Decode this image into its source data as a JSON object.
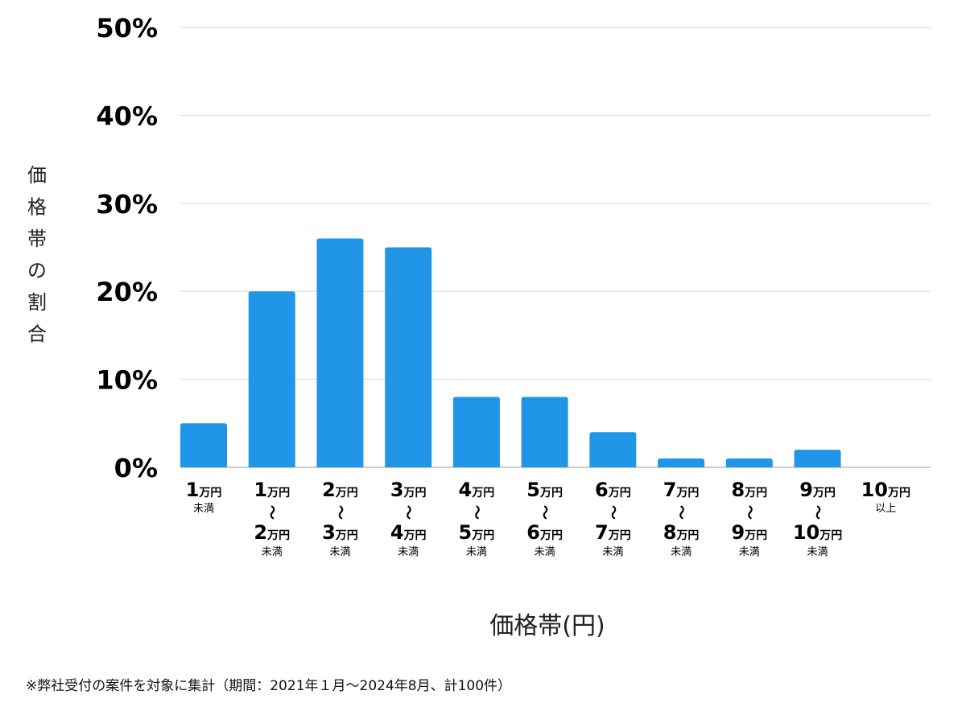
{
  "chart_data": {
    "type": "bar",
    "title": "",
    "xlabel": "価格帯(円)",
    "ylabel": "価格帯の割合",
    "ylim": [
      0,
      50
    ],
    "yticks": [
      "0%",
      "10%",
      "20%",
      "30%",
      "40%",
      "50%"
    ],
    "grid": true,
    "bar_color": "#2196e8",
    "unit": "万円",
    "separator": "〜",
    "categories": [
      {
        "lo": "1",
        "hi": "",
        "note": "未満"
      },
      {
        "lo": "1",
        "hi": "2",
        "note": "未満"
      },
      {
        "lo": "2",
        "hi": "3",
        "note": "未満"
      },
      {
        "lo": "3",
        "hi": "4",
        "note": "未満"
      },
      {
        "lo": "4",
        "hi": "5",
        "note": "未満"
      },
      {
        "lo": "5",
        "hi": "6",
        "note": "未満"
      },
      {
        "lo": "6",
        "hi": "7",
        "note": "未満"
      },
      {
        "lo": "7",
        "hi": "8",
        "note": "未満"
      },
      {
        "lo": "8",
        "hi": "9",
        "note": "未満"
      },
      {
        "lo": "9",
        "hi": "10",
        "note": "未満"
      },
      {
        "lo": "10",
        "hi": "",
        "note": "以上"
      }
    ],
    "values": [
      5,
      20,
      26,
      25,
      8,
      8,
      4,
      1,
      1,
      2,
      0
    ]
  },
  "footnote": "※弊社受付の案件を対象に集計（期間：2021年１月〜2024年8月、計100件）"
}
